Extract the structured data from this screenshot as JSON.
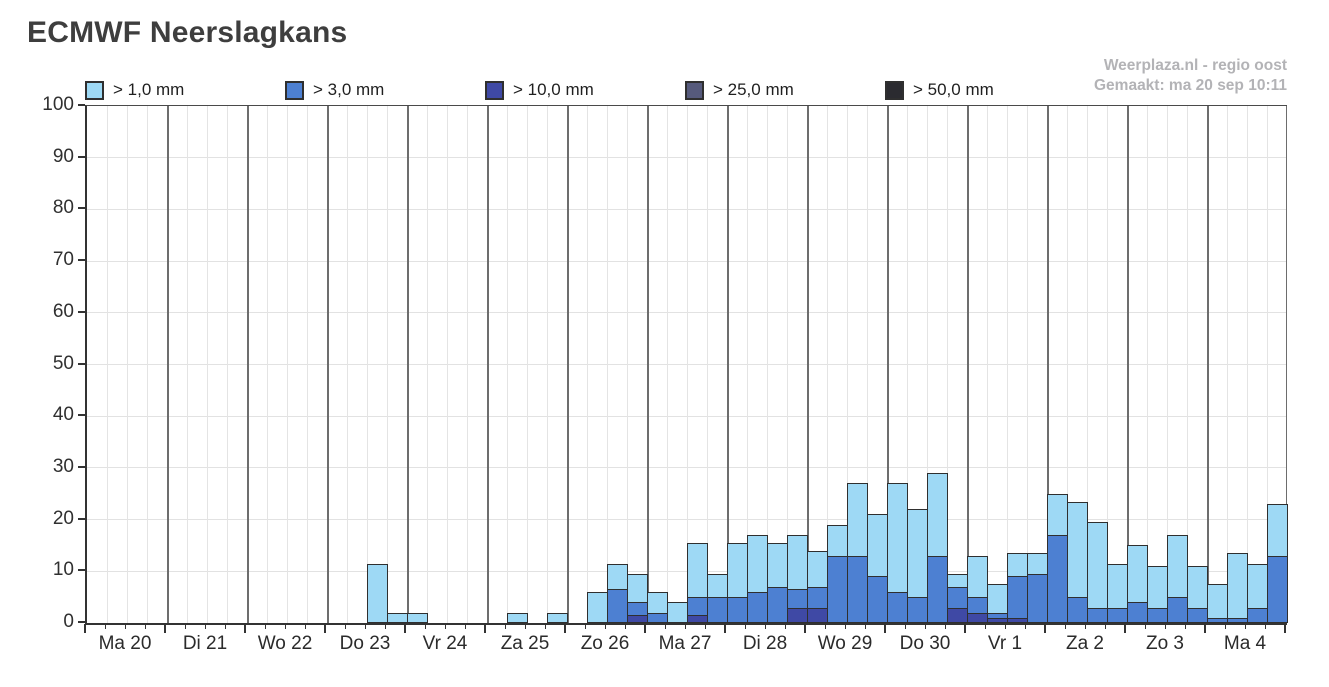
{
  "header": {
    "title": "ECMWF Neerslagkans"
  },
  "watermark": {
    "line1": "Weerplaza.nl - regio oost",
    "line2": "Gemaakt: ma 20 sep 10:11"
  },
  "colors": {
    "background": "#ffffff",
    "title_text": "#3e3e3e",
    "watermark_text": "#b3b3b6",
    "axis": "#333333",
    "grid": "#e2e2e2",
    "day_separator": "#6d6d6d",
    "bar_outline": "#2f2f2f"
  },
  "chart_data": {
    "type": "bar",
    "stacked": true,
    "title": "ECMWF Neerslagkans",
    "xlabel": "",
    "ylabel": "",
    "ylim": [
      0,
      100
    ],
    "grid": true,
    "legend_position": "top",
    "bars_per_day": 4,
    "y_tick_labels": [
      "100",
      "90",
      "80",
      "70",
      "60",
      "50",
      "40",
      "30",
      "20",
      "10",
      "0"
    ],
    "y_ticks": [
      100,
      90,
      80,
      70,
      60,
      50,
      40,
      30,
      20,
      10,
      0
    ],
    "categories": [
      "Ma 20",
      "Di 21",
      "Wo 22",
      "Do 23",
      "Vr 24",
      "Za 25",
      "Zo 26",
      "Ma 27",
      "Di 28",
      "Wo 29",
      "Do 30",
      "Vr 1",
      "Za 2",
      "Zo 3",
      "Ma 4"
    ],
    "series": [
      {
        "name": "> 1,0 mm",
        "color": "#9ed9f5",
        "values": [
          0,
          0,
          0,
          0,
          0,
          0,
          0,
          0,
          0,
          0,
          0,
          0,
          0,
          0,
          11.5,
          2,
          2,
          0,
          0,
          0,
          0,
          2,
          0,
          2,
          0,
          6,
          11.5,
          9.5,
          6,
          4,
          15.5,
          9.5,
          15.5,
          17,
          15.5,
          17,
          14,
          19,
          27,
          21,
          27,
          22,
          29,
          9.5,
          13,
          7.5,
          13.5,
          13.5,
          25,
          23.5,
          19.5,
          11.5,
          15,
          11,
          17,
          11,
          7.5,
          13.5,
          11.5,
          23
        ]
      },
      {
        "name": "> 3,0 mm",
        "color": "#4d80d2",
        "values": [
          0,
          0,
          0,
          0,
          0,
          0,
          0,
          0,
          0,
          0,
          0,
          0,
          0,
          0,
          0,
          0,
          0,
          0,
          0,
          0,
          0,
          0,
          0,
          0,
          0,
          0,
          6.5,
          4,
          2,
          0,
          5,
          5,
          5,
          6,
          7,
          6.5,
          7,
          13,
          13,
          9,
          6,
          5,
          13,
          7,
          5,
          2,
          9,
          9.5,
          17,
          5,
          3,
          3,
          4,
          3,
          5,
          3,
          1,
          1,
          3,
          13
        ]
      },
      {
        "name": "> 10,0 mm",
        "color": "#3f49a5",
        "values": [
          0,
          0,
          0,
          0,
          0,
          0,
          0,
          0,
          0,
          0,
          0,
          0,
          0,
          0,
          0,
          0,
          0,
          0,
          0,
          0,
          0,
          0,
          0,
          0,
          0,
          0,
          0,
          1.5,
          0,
          0,
          1.5,
          0,
          0,
          0,
          0,
          3,
          3,
          0,
          0,
          0,
          0,
          0,
          0,
          3,
          2,
          1,
          1,
          0,
          0,
          0,
          0,
          0,
          0,
          0,
          0,
          0,
          0,
          0,
          0,
          0
        ]
      },
      {
        "name": "> 25,0 mm",
        "color": "#565a7c",
        "values": [
          0,
          0,
          0,
          0,
          0,
          0,
          0,
          0,
          0,
          0,
          0,
          0,
          0,
          0,
          0,
          0,
          0,
          0,
          0,
          0,
          0,
          0,
          0,
          0,
          0,
          0,
          0,
          0,
          0,
          0,
          0,
          0,
          0,
          0,
          0,
          0,
          0,
          0,
          0,
          0,
          0,
          0,
          0,
          0,
          0,
          0,
          0,
          0,
          0,
          0,
          0,
          0,
          0,
          0,
          0,
          0,
          0,
          0,
          0,
          0
        ]
      },
      {
        "name": "> 50,0 mm",
        "color": "#2b2b30",
        "values": [
          0,
          0,
          0,
          0,
          0,
          0,
          0,
          0,
          0,
          0,
          0,
          0,
          0,
          0,
          0,
          0,
          0,
          0,
          0,
          0,
          0,
          0,
          0,
          0,
          0,
          0,
          0,
          0,
          0,
          0,
          0,
          0,
          0,
          0,
          0,
          0,
          0,
          0,
          0,
          0,
          0,
          0,
          0,
          0,
          0,
          0,
          0,
          0,
          0,
          0,
          0,
          0,
          0,
          0,
          0,
          0,
          0,
          0,
          0,
          0
        ]
      }
    ]
  }
}
